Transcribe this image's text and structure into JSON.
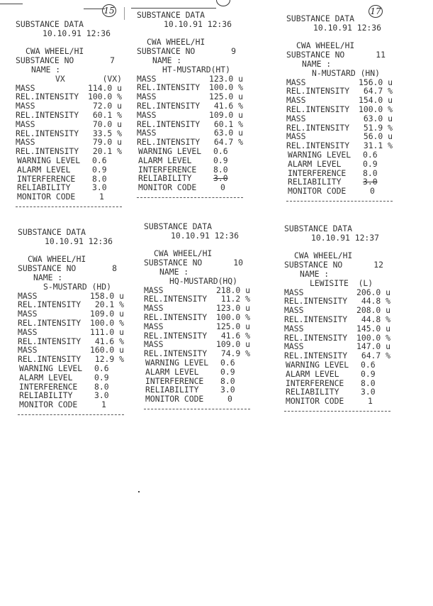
{
  "annotations": {
    "receipt_1": "15",
    "receipt_3": "17"
  },
  "receipts": [
    {
      "title": "SUBSTANCE DATA",
      "datetime": "10.10.91 12:36",
      "mode": "CWA WHEEL/HI",
      "substance_label": "SUBSTANCE NO",
      "substance_no": "7",
      "name_label": "NAME :",
      "name": "VX",
      "name_code": "(VX)",
      "peaks": [
        [
          "MASS",
          "114.0 u"
        ],
        [
          "REL.INTENSITY",
          "100.0 %"
        ],
        [
          "MASS",
          "72.0 u"
        ],
        [
          "REL.INTENSITY",
          "60.1 %"
        ],
        [
          "MASS",
          "70.0 u"
        ],
        [
          "REL.INTENSITY",
          "33.5 %"
        ],
        [
          "MASS",
          "79.0 u"
        ],
        [
          "REL.INTENSITY",
          "20.1 %"
        ]
      ],
      "levels": [
        [
          "WARNING LEVEL",
          "0.6"
        ],
        [
          "ALARM LEVEL",
          "0.9"
        ],
        [
          "INTERFERENCE",
          "8.0"
        ],
        [
          "RELIABILITY",
          "3.0"
        ],
        [
          "MONITOR CODE",
          "1"
        ]
      ]
    },
    {
      "title": "SUBSTANCE DATA",
      "datetime": "10.10.91 12:36",
      "mode": "CWA WHEEL/HI",
      "substance_label": "SUBSTANCE NO",
      "substance_no": "9",
      "name_label": "NAME :",
      "name": "HT-MUSTARD(HT)",
      "name_code": "",
      "peaks": [
        [
          "MASS",
          "123.0 u"
        ],
        [
          "REL.INTENSITY",
          "100.0 %"
        ],
        [
          "MASS",
          "125.0 u"
        ],
        [
          "REL.INTENSITY",
          "41.6 %"
        ],
        [
          "MASS",
          "109.0 u"
        ],
        [
          "REL.INTENSITY",
          "60.1 %"
        ],
        [
          "MASS",
          "63.0 u"
        ],
        [
          "REL.INTENSITY",
          "64.7 %"
        ]
      ],
      "levels": [
        [
          "WARNING LEVEL",
          "0.6"
        ],
        [
          "ALARM LEVEL",
          "0.9"
        ],
        [
          "INTERFERENCE",
          "8.0"
        ],
        [
          "RELIABILITY",
          "3.0"
        ],
        [
          "MONITOR CODE",
          "0"
        ]
      ],
      "reliability_struck": true
    },
    {
      "title": "SUBSTANCE DATA",
      "datetime": "10.10.91 12:36",
      "mode": "CWA WHEEL/HI",
      "substance_label": "SUBSTANCE NO",
      "substance_no": "11",
      "name_label": "NAME :",
      "name": "N-MUSTARD (HN)",
      "name_code": "",
      "peaks": [
        [
          "MASS",
          "156.0 u"
        ],
        [
          "REL.INTENSITY",
          "64.7 %"
        ],
        [
          "MASS",
          "154.0 u"
        ],
        [
          "REL.INTENSITY",
          "100.0 %"
        ],
        [
          "MASS",
          "63.0 u"
        ],
        [
          "REL.INTENSITY",
          "51.9 %"
        ],
        [
          "MASS",
          "56.0 u"
        ],
        [
          "REL.INTENSITY",
          "31.1 %"
        ]
      ],
      "levels": [
        [
          "WARNING LEVEL",
          "0.6"
        ],
        [
          "ALARM LEVEL",
          "0.9"
        ],
        [
          "INTERFERENCE",
          "8.0"
        ],
        [
          "RELIABILITY",
          "3.0"
        ],
        [
          "MONITOR CODE",
          "0"
        ]
      ],
      "reliability_struck": true
    },
    {
      "title": "SUBSTANCE DATA",
      "datetime": "10.10.91 12:36",
      "mode": "CWA WHEEL/HI",
      "substance_label": "SUBSTANCE NO",
      "substance_no": "8",
      "name_label": "NAME :",
      "name": "S-MUSTARD (HD)",
      "name_code": "",
      "peaks": [
        [
          "MASS",
          "158.0 u"
        ],
        [
          "REL.INTENSITY",
          "20.1 %"
        ],
        [
          "MASS",
          "109.0 u"
        ],
        [
          "REL.INTENSITY",
          "100.0 %"
        ],
        [
          "MASS",
          "111.0 u"
        ],
        [
          "REL.INTENSITY",
          "41.6 %"
        ],
        [
          "MASS",
          "160.0 u"
        ],
        [
          "REL.INTENSITY",
          "12.9 %"
        ]
      ],
      "levels": [
        [
          "WARNING LEVEL",
          "0.6"
        ],
        [
          "ALARM LEVEL",
          "0.9"
        ],
        [
          "INTERFERENCE",
          "8.0"
        ],
        [
          "RELIABILITY",
          "3.0"
        ],
        [
          "MONITOR CODE",
          "1"
        ]
      ]
    },
    {
      "title": "SUBSTANCE DATA",
      "datetime": "10.10.91 12:36",
      "mode": "CWA WHEEL/HI",
      "substance_label": "SUBSTANCE NO",
      "substance_no": "10",
      "name_label": "NAME :",
      "name": "HQ-MUSTARD(HQ)",
      "name_code": "",
      "peaks": [
        [
          "MASS",
          "218.0 u"
        ],
        [
          "REL.INTENSITY",
          "11.2 %"
        ],
        [
          "MASS",
          "123.0 u"
        ],
        [
          "REL.INTENSITY",
          "100.0 %"
        ],
        [
          "MASS",
          "125.0 u"
        ],
        [
          "REL.INTENSITY",
          "41.6 %"
        ],
        [
          "MASS",
          "109.0 u"
        ],
        [
          "REL.INTENSITY",
          "74.9 %"
        ]
      ],
      "levels": [
        [
          "WARNING LEVEL",
          "0.6"
        ],
        [
          "ALARM LEVEL",
          "0.9"
        ],
        [
          "INTERFERENCE",
          "8.0"
        ],
        [
          "RELIABILITY",
          "3.0"
        ],
        [
          "MONITOR CODE",
          "0"
        ]
      ]
    },
    {
      "title": "SUBSTANCE DATA",
      "datetime": "10.10.91 12:37",
      "mode": "CWA WHEEL/HI",
      "substance_label": "SUBSTANCE NO",
      "substance_no": "12",
      "name_label": "NAME :",
      "name": "LEWISITE  (L)",
      "name_code": "",
      "peaks": [
        [
          "MASS",
          "206.0 u"
        ],
        [
          "REL.INTENSITY",
          "44.8 %"
        ],
        [
          "MASS",
          "208.0 u"
        ],
        [
          "REL.INTENSITY",
          "44.8 %"
        ],
        [
          "MASS",
          "145.0 u"
        ],
        [
          "REL.INTENSITY",
          "100.0 %"
        ],
        [
          "MASS",
          "147.0 u"
        ],
        [
          "REL.INTENSITY",
          "64.7 %"
        ]
      ],
      "levels": [
        [
          "WARNING LEVEL",
          "0.6"
        ],
        [
          "ALARM LEVEL",
          "0.9"
        ],
        [
          "INTERFERENCE",
          "8.0"
        ],
        [
          "RELIABILITY",
          "3.0"
        ],
        [
          "MONITOR CODE",
          "1"
        ]
      ]
    }
  ]
}
